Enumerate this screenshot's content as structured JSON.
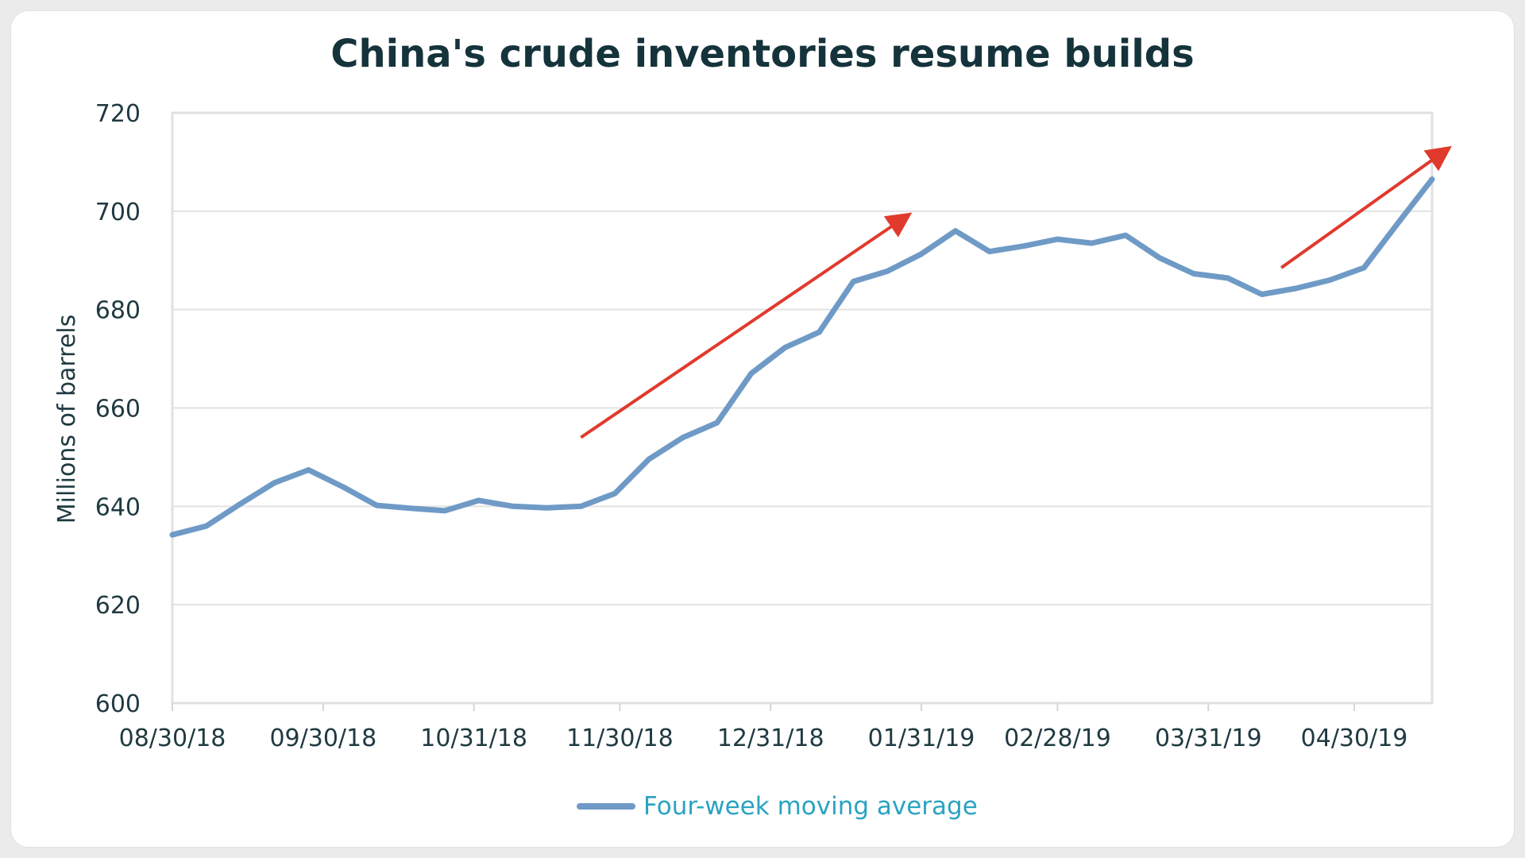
{
  "chart_data": {
    "type": "line",
    "title": "China's crude inventories resume builds",
    "xlabel": "",
    "ylabel": "Millions of barrels",
    "ylim": [
      600,
      720
    ],
    "yticks": [
      600,
      620,
      640,
      660,
      680,
      700,
      720
    ],
    "xticks": [
      "08/30/18",
      "09/30/18",
      "10/31/18",
      "11/30/18",
      "12/31/18",
      "01/31/19",
      "02/28/19",
      "03/31/19",
      "04/30/19"
    ],
    "grid": true,
    "legend_position": "bottom",
    "series": [
      {
        "name": "Four-week moving average",
        "color": "#6f9ac6",
        "x": [
          "2018-08-30",
          "2018-09-06",
          "2018-09-13",
          "2018-09-20",
          "2018-09-27",
          "2018-10-04",
          "2018-10-11",
          "2018-10-18",
          "2018-10-25",
          "2018-11-01",
          "2018-11-08",
          "2018-11-15",
          "2018-11-22",
          "2018-11-29",
          "2018-12-06",
          "2018-12-13",
          "2018-12-20",
          "2018-12-27",
          "2019-01-03",
          "2019-01-10",
          "2019-01-17",
          "2019-01-24",
          "2019-01-31",
          "2019-02-07",
          "2019-02-14",
          "2019-02-21",
          "2019-02-28",
          "2019-03-07",
          "2019-03-14",
          "2019-03-21",
          "2019-03-28",
          "2019-04-04",
          "2019-04-11",
          "2019-04-18",
          "2019-04-25",
          "2019-05-02",
          "2019-05-09",
          "2019-05-16"
        ],
        "values": [
          634.2,
          636.0,
          640.5,
          644.8,
          647.4,
          644.0,
          640.2,
          639.6,
          639.1,
          641.2,
          640.0,
          639.7,
          640.0,
          642.6,
          649.6,
          654.0,
          657.0,
          667.0,
          672.3,
          675.4,
          685.7,
          687.8,
          691.3,
          696.0,
          691.8,
          692.9,
          694.3,
          693.5,
          695.1,
          690.5,
          687.3,
          686.4,
          683.1,
          684.3,
          686.0,
          688.5,
          697.6,
          706.5
        ]
      }
    ],
    "annotations": [
      {
        "type": "arrow",
        "color": "#e03a2d",
        "from": [
          "2018-11-22",
          654
        ],
        "to": [
          "2019-01-28",
          699
        ]
      },
      {
        "type": "arrow",
        "color": "#e03a2d",
        "from": [
          "2019-04-15",
          688.5
        ],
        "to": [
          "2019-05-19",
          712.5
        ]
      }
    ]
  }
}
